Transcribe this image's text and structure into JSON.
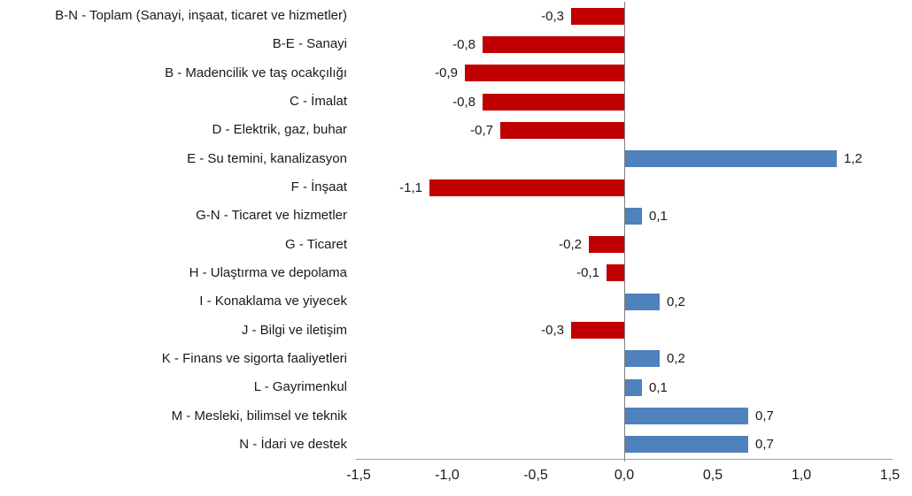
{
  "colors": {
    "negative_bar": "#C00000",
    "positive_bar": "#4F81BD",
    "axis_line": "#9d9d9d",
    "zero_line": "#7f7f7f",
    "text": "#1a1a1a"
  },
  "chart_data": {
    "type": "bar",
    "orientation": "horizontal",
    "title": "",
    "xlabel": "",
    "ylabel": "",
    "grid": false,
    "legend": false,
    "xlim": [
      -1.5,
      1.5
    ],
    "x_tick_values": [
      -1.5,
      -1.0,
      -0.5,
      0.0,
      0.5,
      1.0,
      1.5
    ],
    "x_tick_labels": [
      "-1,5",
      "-1,0",
      "-0,5",
      "0,0",
      "0,5",
      "1,0",
      "1,5"
    ],
    "categories": [
      "B-N - Toplam (Sanayi, inşaat, ticaret ve hizmetler)",
      "B-E - Sanayi",
      "B - Madencilik ve taş ocakçılığı",
      "C - İmalat",
      "D - Elektrik, gaz, buhar",
      "E - Su temini, kanalizasyon",
      "F - İnşaat",
      "G-N - Ticaret ve hizmetler",
      "G - Ticaret",
      "H - Ulaştırma ve depolama",
      "I - Konaklama ve yiyecek",
      "J - Bilgi ve iletişim",
      "K - Finans ve sigorta faaliyetleri",
      "L - Gayrimenkul",
      "M - Mesleki, bilimsel ve teknik",
      "N - İdari ve destek"
    ],
    "values": [
      -0.3,
      -0.8,
      -0.9,
      -0.8,
      -0.7,
      1.2,
      -1.1,
      0.1,
      -0.2,
      -0.1,
      0.2,
      -0.3,
      0.2,
      0.1,
      0.7,
      0.7
    ],
    "value_labels": [
      "-0,3",
      "-0,8",
      "-0,9",
      "-0,8",
      "-0,7",
      "1,2",
      "-1,1",
      "0,1",
      "-0,2",
      "-0,1",
      "0,2",
      "-0,3",
      "0,2",
      "0,1",
      "0,7",
      "0,7"
    ]
  }
}
